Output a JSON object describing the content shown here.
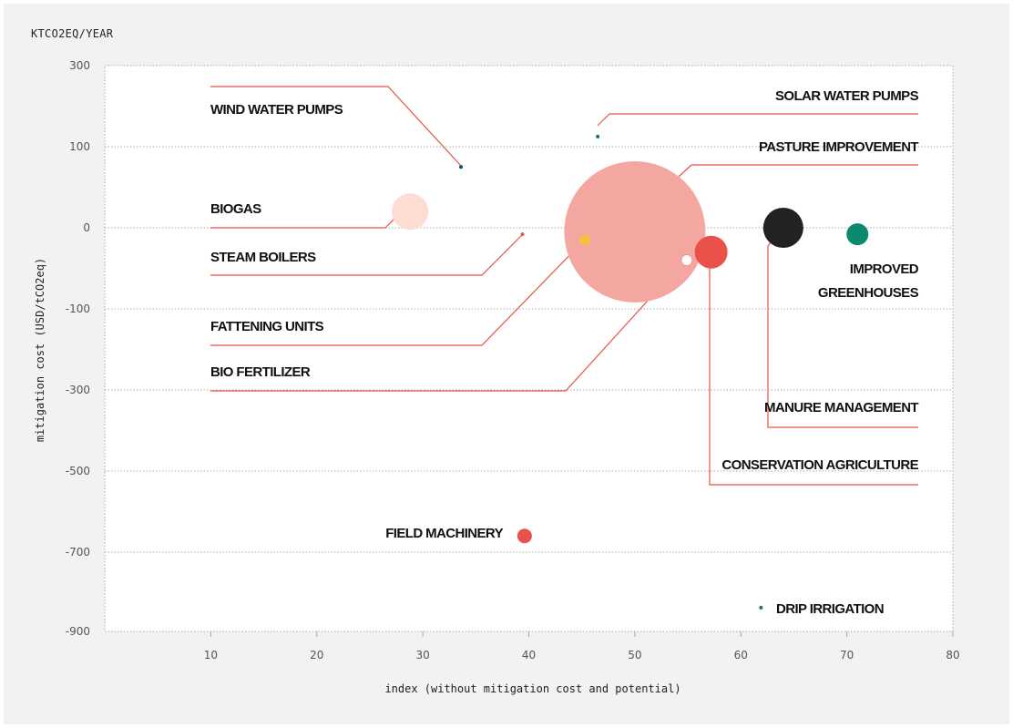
{
  "chart_data": {
    "type": "scatter",
    "unit_label": "KTCO2EQ/YEAR",
    "xlabel": "index (without mitigation cost and potential)",
    "ylabel": "mitigation cost (USD/tCO2eq)",
    "xlim": [
      0,
      80
    ],
    "ylim": [
      -900,
      300
    ],
    "x_ticks": [
      10,
      20,
      30,
      40,
      50,
      60,
      70,
      80
    ],
    "y_ticks": [
      300,
      100,
      0,
      -100,
      -300,
      -500,
      -700,
      -900
    ],
    "y_tick_labels": [
      "300",
      "100",
      "0",
      "-100",
      "-300",
      "-500",
      "-700",
      "-900"
    ],
    "grid": true,
    "points": [
      {
        "name": "WIND WATER PUMPS",
        "x": 33.6,
        "y": 75,
        "size": 4,
        "color": "#0e4f5c"
      },
      {
        "name": "SOLAR WATER PUMPS",
        "x": 46.5,
        "y": 125,
        "size": 4,
        "color": "#0e7a6a"
      },
      {
        "name": "PASTURE IMPROVEMENT",
        "x": 50,
        "y": -5,
        "size": 155,
        "color": "#f4a7a1"
      },
      {
        "name": "BIOGAS",
        "x": 28.8,
        "y": 20,
        "size": 40,
        "color": "#fcdcd3"
      },
      {
        "name": "STEAM BOILERS",
        "x": 39.4,
        "y": -8,
        "size": 4,
        "color": "#e0584c"
      },
      {
        "name": "FATTENING UNITS",
        "x": 45.3,
        "y": -15,
        "size": 12,
        "color": "#f6c23e"
      },
      {
        "name": "BIO FERTILIZER",
        "x": 54.9,
        "y": -40,
        "size": 12,
        "color": "#ffffff"
      },
      {
        "name": "CONSERVATION AGRICULTURE",
        "x": 57.2,
        "y": -30,
        "size": 36,
        "color": "#e9524a"
      },
      {
        "name": "MANURE MANAGEMENT",
        "x": 64.0,
        "y": 0,
        "size": 44,
        "color": "#222222"
      },
      {
        "name": "IMPROVED GREENHOUSES",
        "x": 71.0,
        "y": -8,
        "size": 24,
        "color": "#0b8a6e"
      },
      {
        "name": "FIELD MACHINERY",
        "x": 39.6,
        "y": -660,
        "size": 16,
        "color": "#e9524a"
      },
      {
        "name": "DRIP IRRIGATION",
        "x": 61.9,
        "y": -840,
        "size": 4,
        "color": "#0e7a6a"
      }
    ]
  },
  "colors": {
    "background": "#f2f2f2",
    "plot_area": "#ffffff",
    "leader_line": "#e9524a",
    "grid": "#aaaaaa"
  }
}
